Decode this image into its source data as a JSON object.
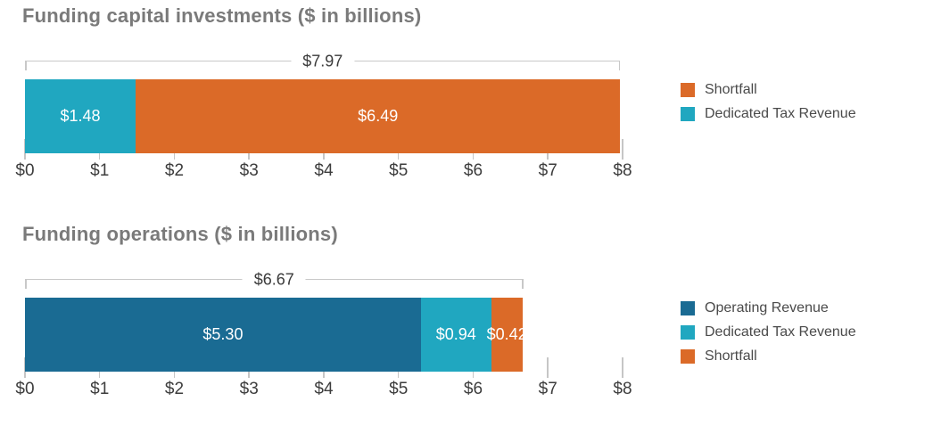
{
  "page": {
    "background": "#ffffff"
  },
  "colors": {
    "orange": "#DB6A28",
    "teal": "#20A7C0",
    "blue": "#1A6B93",
    "title_text": "#7a7a7a",
    "axis_text": "#3d3d3d",
    "bracket_line": "#c8c8c8",
    "value_text": "#ffffff"
  },
  "chart_data": [
    {
      "type": "bar",
      "subtype": "horizontal-stacked",
      "title": "Funding capital investments ($ in billions)",
      "total": 7.97,
      "total_label": "$7.97",
      "axis": {
        "min": 0,
        "max": 8,
        "tick_labels": [
          "$0",
          "$1",
          "$2",
          "$3",
          "$4",
          "$5",
          "$6",
          "$7",
          "$8"
        ]
      },
      "grid": false,
      "segments": [
        {
          "name": "Dedicated Tax Revenue",
          "value": 1.48,
          "label": "$1.48",
          "color": "#20A7C0"
        },
        {
          "name": "Shortfall",
          "value": 6.49,
          "label": "$6.49",
          "color": "#DB6A28"
        }
      ],
      "legend_position": "right",
      "legend": [
        {
          "label": "Shortfall",
          "color": "#DB6A28"
        },
        {
          "label": "Dedicated Tax Revenue",
          "color": "#20A7C0"
        }
      ]
    },
    {
      "type": "bar",
      "subtype": "horizontal-stacked",
      "title": "Funding operations ($ in billions)",
      "total": 6.67,
      "total_label": "$6.67",
      "axis": {
        "min": 0,
        "max": 8,
        "tick_labels": [
          "$0",
          "$1",
          "$2",
          "$3",
          "$4",
          "$5",
          "$6",
          "$7",
          "$8"
        ]
      },
      "grid": false,
      "segments": [
        {
          "name": "Operating Revenue",
          "value": 5.3,
          "label": "$5.30",
          "color": "#1A6B93"
        },
        {
          "name": "Dedicated Tax Revenue",
          "value": 0.94,
          "label": "$0.94",
          "color": "#20A7C0"
        },
        {
          "name": "Shortfall",
          "value": 0.42,
          "label": "$0.42",
          "color": "#DB6A28"
        }
      ],
      "legend_position": "right",
      "legend": [
        {
          "label": "Operating Revenue",
          "color": "#1A6B93"
        },
        {
          "label": "Dedicated Tax Revenue",
          "color": "#20A7C0"
        },
        {
          "label": "Shortfall",
          "color": "#DB6A28"
        }
      ]
    }
  ]
}
